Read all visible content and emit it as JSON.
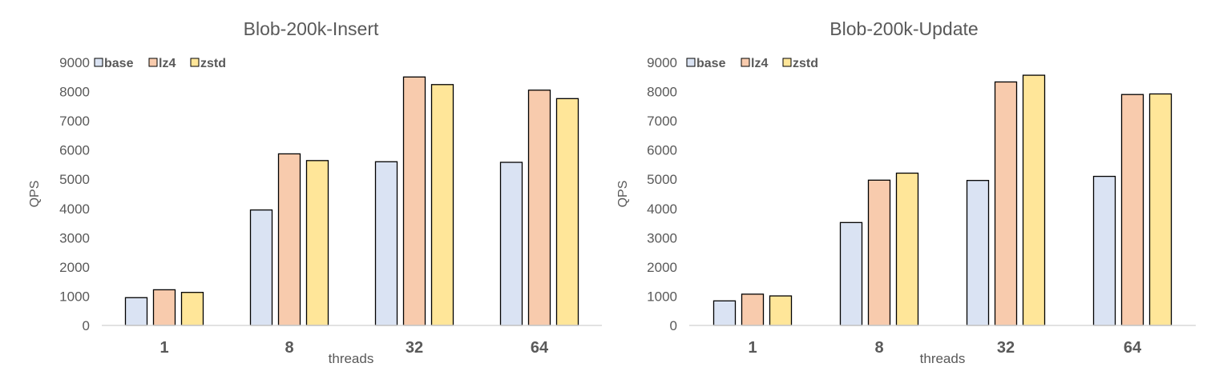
{
  "colors": {
    "base": "#dae3f3",
    "lz4": "#f8cbad",
    "zstd": "#ffe699",
    "bar_stroke": "#000000",
    "axis_line": "#d9d9d9",
    "text": "#595959"
  },
  "chart_data": [
    {
      "type": "bar",
      "title": "Blob-200k-Insert",
      "xlabel": "threads",
      "ylabel": "QPS",
      "categories": [
        "1",
        "8",
        "32",
        "64"
      ],
      "ylim": [
        0,
        9000
      ],
      "yticks": [
        0,
        1000,
        2000,
        3000,
        4000,
        5000,
        6000,
        7000,
        8000,
        9000
      ],
      "grid": false,
      "legend_position": "top-left",
      "series": [
        {
          "name": "base",
          "color_key": "base",
          "values": [
            950,
            3950,
            5600,
            5580
          ]
        },
        {
          "name": "lz4",
          "color_key": "lz4",
          "values": [
            1220,
            5870,
            8500,
            8050
          ]
        },
        {
          "name": "zstd",
          "color_key": "zstd",
          "values": [
            1130,
            5640,
            8240,
            7760
          ]
        }
      ]
    },
    {
      "type": "bar",
      "title": "Blob-200k-Update",
      "xlabel": "threads",
      "ylabel": "QPS",
      "categories": [
        "1",
        "8",
        "32",
        "64"
      ],
      "ylim": [
        0,
        9000
      ],
      "yticks": [
        0,
        1000,
        2000,
        3000,
        4000,
        5000,
        6000,
        7000,
        8000,
        9000
      ],
      "grid": false,
      "legend_position": "top-left",
      "series": [
        {
          "name": "base",
          "color_key": "base",
          "values": [
            840,
            3520,
            4960,
            5100
          ]
        },
        {
          "name": "lz4",
          "color_key": "lz4",
          "values": [
            1070,
            4970,
            8330,
            7900
          ]
        },
        {
          "name": "zstd",
          "color_key": "zstd",
          "values": [
            1010,
            5210,
            8560,
            7920
          ]
        }
      ]
    }
  ]
}
